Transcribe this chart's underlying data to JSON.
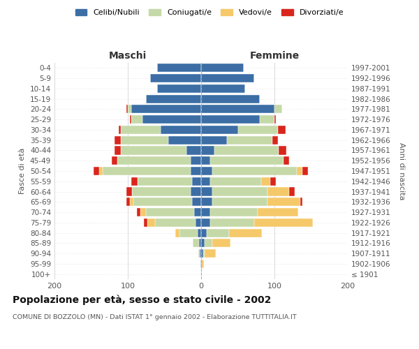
{
  "age_groups": [
    "100+",
    "95-99",
    "90-94",
    "85-89",
    "80-84",
    "75-79",
    "70-74",
    "65-69",
    "60-64",
    "55-59",
    "50-54",
    "45-49",
    "40-44",
    "35-39",
    "30-34",
    "25-29",
    "20-24",
    "15-19",
    "10-14",
    "5-9",
    "0-4"
  ],
  "birth_years": [
    "≤ 1901",
    "1902-1906",
    "1907-1911",
    "1912-1916",
    "1917-1921",
    "1922-1926",
    "1927-1931",
    "1932-1936",
    "1937-1941",
    "1942-1946",
    "1947-1951",
    "1952-1956",
    "1957-1961",
    "1962-1966",
    "1967-1971",
    "1972-1976",
    "1977-1981",
    "1982-1986",
    "1987-1991",
    "1992-1996",
    "1997-2001"
  ],
  "colors": {
    "celibi": "#3c6ea5",
    "coniugati": "#c5d9a8",
    "vedovi": "#f5c96a",
    "divorziati": "#d9261c"
  },
  "males_celibi": [
    0,
    1,
    2,
    3,
    5,
    8,
    10,
    12,
    14,
    12,
    14,
    14,
    20,
    45,
    55,
    80,
    95,
    75,
    60,
    70,
    60
  ],
  "males_coniugati": [
    0,
    0,
    2,
    8,
    25,
    55,
    65,
    80,
    80,
    75,
    120,
    100,
    90,
    65,
    55,
    15,
    5,
    0,
    0,
    0,
    0
  ],
  "males_vedovi": [
    0,
    0,
    0,
    0,
    5,
    10,
    8,
    5,
    0,
    0,
    5,
    0,
    0,
    0,
    0,
    0,
    0,
    0,
    0,
    0,
    0
  ],
  "males_divorziati": [
    0,
    0,
    0,
    0,
    0,
    5,
    5,
    5,
    8,
    8,
    8,
    8,
    8,
    8,
    2,
    2,
    2,
    0,
    0,
    0,
    0
  ],
  "females_celibi": [
    0,
    1,
    3,
    5,
    8,
    12,
    12,
    15,
    15,
    12,
    15,
    12,
    18,
    35,
    50,
    80,
    100,
    80,
    60,
    72,
    58
  ],
  "females_coniugati": [
    0,
    0,
    2,
    10,
    30,
    60,
    65,
    75,
    75,
    70,
    115,
    100,
    88,
    62,
    55,
    20,
    10,
    0,
    0,
    0,
    0
  ],
  "females_vedovi": [
    1,
    3,
    15,
    25,
    45,
    80,
    55,
    45,
    30,
    12,
    8,
    0,
    0,
    0,
    0,
    0,
    0,
    0,
    0,
    0,
    0
  ],
  "females_divorziati": [
    0,
    0,
    0,
    0,
    0,
    0,
    0,
    3,
    8,
    8,
    8,
    8,
    10,
    8,
    10,
    2,
    0,
    0,
    0,
    0,
    0
  ],
  "title": "Popolazione per età, sesso e stato civile - 2002",
  "subtitle": "COMUNE DI BOZZOLO (MN) - Dati ISTAT 1° gennaio 2002 - Elaborazione TUTTITALIA.IT",
  "label_maschi": "Maschi",
  "label_femmine": "Femmine",
  "ylabel_left": "Fasce di età",
  "ylabel_right": "Anni di nascita",
  "xlim": 200,
  "legend_labels": [
    "Celibi/Nubili",
    "Coniugati/e",
    "Vedovi/e",
    "Divorziati/e"
  ],
  "background_color": "#ffffff",
  "grid_color": "#d0d0d0"
}
